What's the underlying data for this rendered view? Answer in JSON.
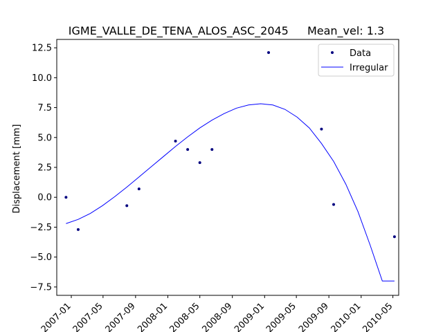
{
  "chart_data": {
    "type": "scatter",
    "title": "IGME_VALLE_DE_TENA_ALOS_ASC_2045",
    "subtitle": "Mean_vel: 1.3",
    "xlabel": "",
    "ylabel": "Displacement [mm]",
    "xlim": [
      "2006-11-07",
      "2010-05-23"
    ],
    "ylim": [
      -8.2,
      13.2
    ],
    "x_ticks": [
      "2007-01",
      "2007-05",
      "2007-09",
      "2008-01",
      "2008-05",
      "2008-09",
      "2009-01",
      "2009-05",
      "2009-09",
      "2010-01",
      "2010-05"
    ],
    "y_ticks": [
      "−7.5",
      "−5.0",
      "−2.5",
      "0.0",
      "2.5",
      "5.0",
      "7.5",
      "10.0",
      "12.5"
    ],
    "grid": false,
    "legend_position": "top-right",
    "colors": {
      "data": "#00007f",
      "irregular": "#0000ff"
    },
    "series": [
      {
        "name": "Data",
        "style": "points",
        "x": [
          "2006-12-12",
          "2007-01-27",
          "2007-07-30",
          "2007-09-14",
          "2008-01-30",
          "2008-03-16",
          "2008-05-01",
          "2008-06-16",
          "2009-01-16",
          "2009-08-04",
          "2009-09-19",
          "2010-05-07"
        ],
        "y": [
          0.0,
          -2.7,
          -0.7,
          0.7,
          4.7,
          4.0,
          2.9,
          4.0,
          12.1,
          5.7,
          -0.6,
          -3.3
        ]
      },
      {
        "name": "Irregular",
        "style": "line",
        "x": [
          "2006-12-12",
          "2007-01-27",
          "2007-03-14",
          "2007-04-29",
          "2007-06-14",
          "2007-07-30",
          "2007-09-14",
          "2007-10-30",
          "2007-12-15",
          "2008-01-30",
          "2008-03-16",
          "2008-05-01",
          "2008-06-16",
          "2008-08-01",
          "2008-09-16",
          "2008-11-01",
          "2008-12-17",
          "2009-02-01",
          "2009-03-19",
          "2009-05-04",
          "2009-06-19",
          "2009-08-04",
          "2009-09-19",
          "2009-11-04",
          "2009-12-20",
          "2010-02-04",
          "2010-03-22",
          "2010-05-07"
        ],
        "y": [
          -2.2,
          -1.85,
          -1.35,
          -0.7,
          0.05,
          0.85,
          1.7,
          2.55,
          3.4,
          4.25,
          5.05,
          5.8,
          6.45,
          7.0,
          7.45,
          7.72,
          7.82,
          7.72,
          7.35,
          6.7,
          5.8,
          4.5,
          3.0,
          1.1,
          -1.2,
          -4.0,
          -7.0,
          -7.0
        ]
      }
    ]
  }
}
